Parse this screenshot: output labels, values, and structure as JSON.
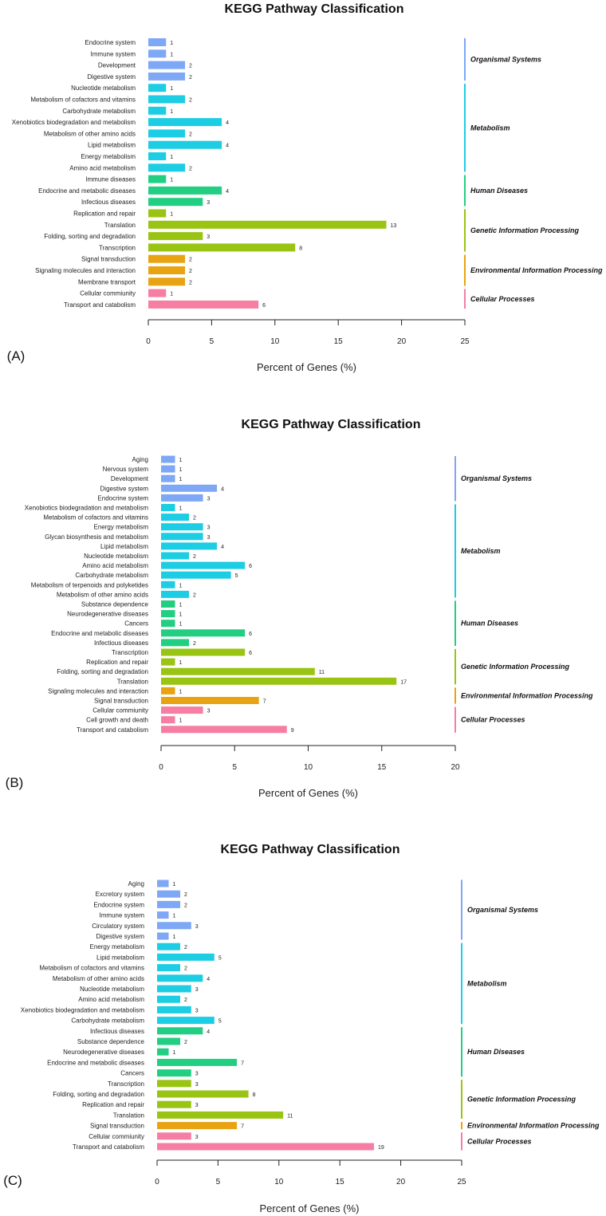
{
  "colors": {
    "Organismal Systems": "#7ea7f5",
    "Metabolism": "#1ccde3",
    "Human Diseases": "#22cf82",
    "Genetic Information Processing": "#9ac413",
    "Environmental Information Processing": "#e8a312",
    "Cellular Processes": "#f57ea2"
  },
  "chart_data": [
    {
      "panel_label": "(A)",
      "type": "bar",
      "orientation": "horizontal",
      "title": "KEGG Pathway Classification",
      "xlabel": "Percent of Genes (%)",
      "xlim": [
        0,
        25
      ],
      "xticks": [
        "0",
        "5",
        "10",
        "15",
        "20",
        "25"
      ],
      "categories": [
        "Endocrine system",
        "Immune system",
        "Development",
        "Digestive system",
        "Nucleotide metabolism",
        "Metabolism of cofactors and vitamins",
        "Carbohydrate metabolism",
        "Xenobiotics biodegradation and metabolism",
        "Metabolism of other amino acids",
        "Lipid metabolism",
        "Energy metabolism",
        "Amino acid metabolism",
        "Immune diseases",
        "Endocrine and metabolic diseases",
        "Infectious diseases",
        "Replication and repair",
        "Translation",
        "Folding, sorting and degradation",
        "Transcription",
        "Signal transduction",
        "Signaling molecules and interaction",
        "Membrane transport",
        "Cellular commiunity",
        "Transport and catabolism"
      ],
      "values": [
        1.4,
        1.4,
        2.9,
        2.9,
        1.4,
        2.9,
        1.4,
        5.8,
        2.9,
        5.8,
        1.4,
        2.9,
        1.4,
        5.8,
        4.3,
        1.4,
        18.8,
        4.3,
        11.6,
        2.9,
        2.9,
        2.9,
        1.4,
        8.7
      ],
      "counts": [
        "1",
        "1",
        "2",
        "2",
        "1",
        "2",
        "1",
        "4",
        "2",
        "4",
        "1",
        "2",
        "1",
        "4",
        "3",
        "1",
        "13",
        "3",
        "8",
        "2",
        "2",
        "2",
        "1",
        "6"
      ],
      "groups": [
        {
          "name": "Organismal Systems",
          "count": 4
        },
        {
          "name": "Metabolism",
          "count": 8
        },
        {
          "name": "Human Diseases",
          "count": 3
        },
        {
          "name": "Genetic Information Processing",
          "count": 4
        },
        {
          "name": "Environmental Information Processing",
          "count": 3
        },
        {
          "name": "Cellular Processes",
          "count": 2
        }
      ]
    },
    {
      "panel_label": "(B)",
      "type": "bar",
      "orientation": "horizontal",
      "title": "KEGG Pathway Classification",
      "xlabel": "Percent of Genes (%)",
      "xlim": [
        0,
        20
      ],
      "xticks": [
        "0",
        "5",
        "10",
        "15",
        "20"
      ],
      "categories": [
        "Aging",
        "Nervous system",
        "Development",
        "Digestive system",
        "Endocrine system",
        "Xenobiotics biodegradation and metabolism",
        "Metabolism of cofactors and vitamins",
        "Energy metabolism",
        "Glycan biosynthesis and metabolism",
        "Lipid metabolism",
        "Nucleotide metabolism",
        "Amino acid metabolism",
        "Carbohydrate metabolism",
        "Metabolism of terpenoids and polyketides",
        "Metabolism of other amino acids",
        "Substance dependence",
        "Neurodegenerative diseases",
        "Cancers",
        "Endocrine and metabolic diseases",
        "Infectious diseases",
        "Transcription",
        "Replication and repair",
        "Folding, sorting and degradation",
        "Translation",
        "Signaling molecules and interaction",
        "Signal transduction",
        "Cellular commiunity",
        "Cell growth and death",
        "Transport and catabolism"
      ],
      "values": [
        0.95,
        0.95,
        0.95,
        3.8,
        2.85,
        0.95,
        1.9,
        2.85,
        2.85,
        3.8,
        1.9,
        5.7,
        4.75,
        0.95,
        1.9,
        0.95,
        0.95,
        0.95,
        5.7,
        1.9,
        5.7,
        0.95,
        10.45,
        16.0,
        0.95,
        6.65,
        2.85,
        0.95,
        8.55
      ],
      "counts": [
        "1",
        "1",
        "1",
        "4",
        "3",
        "1",
        "2",
        "3",
        "3",
        "4",
        "2",
        "6",
        "5",
        "1",
        "2",
        "1",
        "1",
        "1",
        "6",
        "2",
        "6",
        "1",
        "11",
        "17",
        "1",
        "7",
        "3",
        "1",
        "9"
      ],
      "groups": [
        {
          "name": "Organismal Systems",
          "count": 5
        },
        {
          "name": "Metabolism",
          "count": 10
        },
        {
          "name": "Human Diseases",
          "count": 5
        },
        {
          "name": "Genetic Information Processing",
          "count": 4
        },
        {
          "name": "Environmental Information Processing",
          "count": 2
        },
        {
          "name": "Cellular Processes",
          "count": 3
        }
      ]
    },
    {
      "panel_label": "(C)",
      "type": "bar",
      "orientation": "horizontal",
      "title": "KEGG Pathway Classification",
      "xlabel": "Percent of Genes (%)",
      "xlim": [
        0,
        25
      ],
      "xticks": [
        "0",
        "5",
        "10",
        "15",
        "20",
        "25"
      ],
      "categories": [
        "Aging",
        "Excretory system",
        "Endocrine system",
        "Immune system",
        "Circulatory system",
        "Digestive system",
        "Energy metabolism",
        "Lipid metabolism",
        "Metabolism of cofactors and vitamins",
        "Metabolism of other amino acids",
        "Nucleotide metabolism",
        "Amino acid metabolism",
        "Xenobiotics biodegradation and metabolism",
        "Carbohydrate metabolism",
        "Infectious diseases",
        "Substance dependence",
        "Neurodegenerative diseases",
        "Endocrine and metabolic diseases",
        "Cancers",
        "Transcription",
        "Folding, sorting and degradation",
        "Replication and repair",
        "Translation",
        "Signal transduction",
        "Cellular commiunity",
        "Transport and catabolism"
      ],
      "values": [
        0.95,
        1.9,
        1.9,
        0.95,
        2.8,
        0.95,
        1.9,
        4.7,
        1.9,
        3.75,
        2.8,
        1.9,
        2.8,
        4.7,
        3.75,
        1.9,
        0.95,
        6.55,
        2.8,
        2.8,
        7.5,
        2.8,
        10.35,
        6.55,
        2.8,
        17.8
      ],
      "counts": [
        "1",
        "2",
        "2",
        "1",
        "3",
        "1",
        "2",
        "5",
        "2",
        "4",
        "3",
        "2",
        "3",
        "5",
        "4",
        "2",
        "1",
        "7",
        "3",
        "3",
        "8",
        "3",
        "11",
        "7",
        "3",
        "19"
      ],
      "groups": [
        {
          "name": "Organismal Systems",
          "count": 6
        },
        {
          "name": "Metabolism",
          "count": 8
        },
        {
          "name": "Human Diseases",
          "count": 5
        },
        {
          "name": "Genetic Information Processing",
          "count": 4
        },
        {
          "name": "Environmental Information Processing",
          "count": 1
        },
        {
          "name": "Cellular Processes",
          "count": 2
        }
      ]
    }
  ]
}
